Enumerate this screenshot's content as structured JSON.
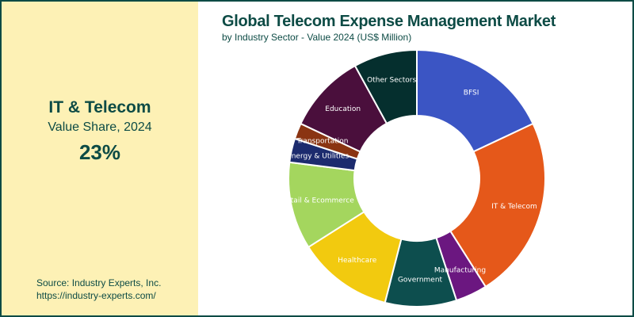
{
  "highlight": {
    "title": "IT & Telecom",
    "subtitle": "Value Share, 2024",
    "value": "23%"
  },
  "source": {
    "line1": "Source: Industry Experts, Inc.",
    "line2": "https://industry-experts.com/"
  },
  "colors": {
    "brand": "#0d4b45",
    "panel": "#fdf1b5"
  },
  "chart_data": {
    "type": "pie",
    "donut": true,
    "title": "Global Telecom Expense Management Market",
    "subtitle": "by Industry Sector - Value 2024 (US$ Million)",
    "categories": [
      "BFSI",
      "IT & Telecom",
      "Manufacturing",
      "Government",
      "Healthcare",
      "Retail & Ecommerce",
      "Energy & Utilities",
      "Transportation",
      "Education",
      "Other Sectors"
    ],
    "values": [
      18,
      23,
      4,
      9,
      12,
      11,
      3,
      2,
      10,
      8
    ],
    "colors": [
      "#3b55c4",
      "#e5581a",
      "#6b1780",
      "#0d4e4e",
      "#f2ca0f",
      "#a4d65e",
      "#1c2b6e",
      "#8a3412",
      "#4a0f3c",
      "#052f2e"
    ],
    "label_colors": [
      "#ffffff",
      "#ffffff",
      "#ffffff",
      "#ffffff",
      "#ffffff",
      "#ffffff",
      "#ffffff",
      "#ffffff",
      "#ffffff",
      "#ffffff"
    ]
  }
}
